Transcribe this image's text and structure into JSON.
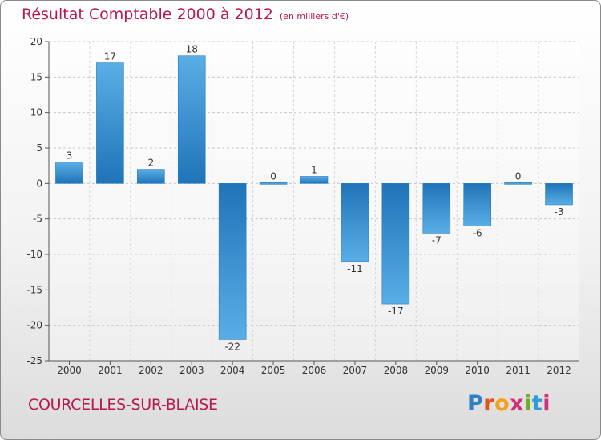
{
  "title": "Résultat Comptable 2000 à 2012",
  "subtitle": "(en milliers d'€)",
  "city": "COURCELLES-SUR-BLAISE",
  "logo": "Proxiti",
  "colors": {
    "bar_light": "#5aaee6",
    "bar_dark": "#1f74b8",
    "title": "#b8174f",
    "axis": "#555555"
  },
  "chart_data": {
    "type": "bar",
    "title": "Résultat Comptable 2000 à 2012",
    "subtitle": "(en milliers d'€)",
    "categories": [
      "2000",
      "2001",
      "2002",
      "2003",
      "2004",
      "2005",
      "2006",
      "2007",
      "2008",
      "2009",
      "2010",
      "2011",
      "2012"
    ],
    "values": [
      3,
      17,
      2,
      18,
      -22,
      0,
      1,
      -11,
      -17,
      -7,
      -6,
      0,
      -3
    ],
    "labels": [
      "3",
      "17",
      "2",
      "18",
      "-22",
      "0",
      "1",
      "-11",
      "-17",
      "-7",
      "-6",
      "0",
      "-3"
    ],
    "ylim": [
      -25,
      20
    ],
    "yticks": [
      20,
      15,
      10,
      5,
      0,
      -5,
      -10,
      -15,
      -20,
      -25
    ],
    "ytick_labels": [
      "20",
      "15",
      "10",
      "5",
      "0",
      "-5",
      "-10",
      "-15",
      "-20",
      "-25"
    ],
    "grid": true,
    "xlabel": "",
    "ylabel": ""
  }
}
